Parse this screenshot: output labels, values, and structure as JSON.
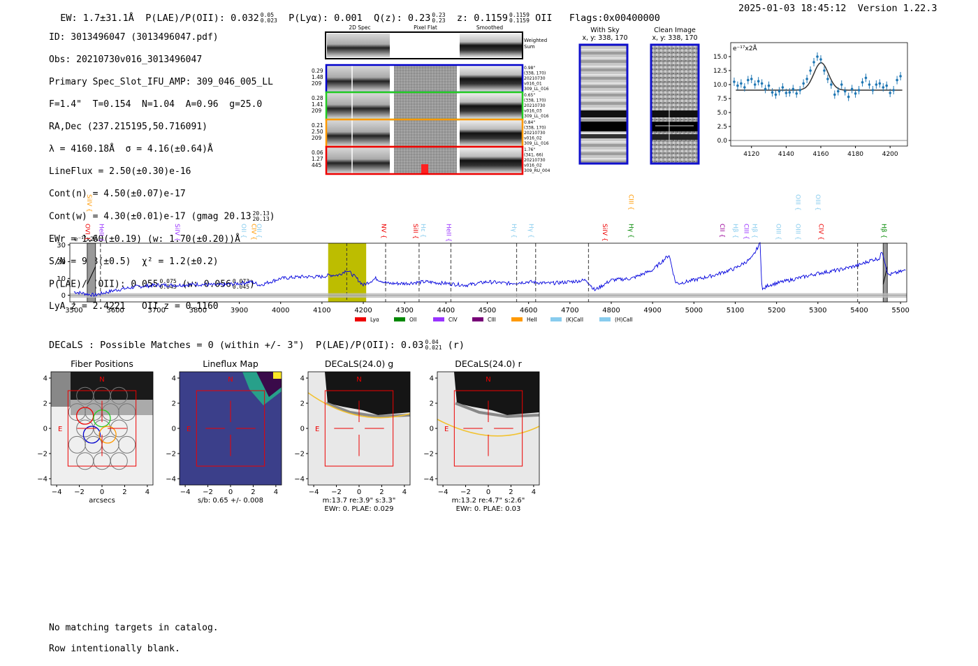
{
  "header": {
    "ew": "EW: 1.7±31.1Å",
    "plae_label": "P(LAE)/P(OII): 0.032",
    "plae_hi": "0.05",
    "plae_lo": "0.023",
    "plya": "P(Lyα): 0.001",
    "qz_label": "Q(z): 0.23",
    "qz_hi": "0.23",
    "qz_lo": "0.23",
    "z_label": "z: 0.1159",
    "z_hi": "0.1159",
    "z_lo": "0.1159",
    "z_line": "OII",
    "flags": "Flags:0x00400000",
    "datetime": "2025-01-03 18:45:12",
    "version": "Version 1.22.3"
  },
  "info": {
    "id": "ID: 3013496047 (3013496047.pdf)",
    "obs": "Obs: 20210730v016_3013496047",
    "primary": "Primary Spec_Slot_IFU_AMP: 309_046_005_LL",
    "params": "F=1.4\"  T=0.154  N=1.04  A=0.96  g=25.0",
    "radec": "RA,Dec (237.215195,50.716091)",
    "lambda": "λ = 4160.18Å  σ = 4.16(±0.64)Å",
    "lineflux": "LineFlux = 2.50(±0.30)e-16",
    "contn": "Cont(n) = 4.50(±0.07)e-17",
    "contw": "Cont(w) = 4.30(±0.01)e-17 (gmag 20.13",
    "contw_hi": "20.13",
    "contw_lo": "20.13",
    "ewr": "EWr = 1.60(±0.19) (w: 1.70(±0.20))Å",
    "sn": "S/N = 9.3(±0.5)  χ² = 1.2(±0.2)",
    "plae": "P(LAE)/P(OII): 0.055",
    "plae_hi": "0.075",
    "plae_lo": "0.043",
    "plae_w": "(w: 0.056",
    "plae_w_hi": "0.073",
    "plae_w_lo": "0.045",
    "lya": "LyA z = 2.4221   OII z = 0.1160"
  },
  "cutouts": {
    "col1": "2D Spec",
    "col2": "Pixel Flat",
    "col3": "Smoothed",
    "weighted": "Weighted",
    "sum": "Sum",
    "rows": [
      {
        "a": "0.29",
        "b": "1.48",
        "c": "209",
        "d1": "0.98\"",
        "d2": "(338, 170)",
        "d3": "20210730",
        "d4": "v016_01",
        "d5": "309_LL_016",
        "color": "#0000cc"
      },
      {
        "a": "0.28",
        "b": "1.41",
        "c": "209",
        "d1": "0.65\"",
        "d2": "(338, 170)",
        "d3": "20210730",
        "d4": "v016_03",
        "d5": "309_LL_016",
        "color": "#22cc22"
      },
      {
        "a": "0.21",
        "b": "2.50",
        "c": "209",
        "d1": "0.84\"",
        "d2": "(338, 170)",
        "d3": "20210730",
        "d4": "v016_02",
        "d5": "309_LL_016",
        "color": "#ff9900"
      },
      {
        "a": "0.06",
        "b": "1.27",
        "c": "445",
        "d1": "1.76\"",
        "d2": "(341, 66)",
        "d3": "20210730",
        "d4": "v016_02",
        "d5": "309_RU_004",
        "color": "#ee0000"
      }
    ]
  },
  "sky": {
    "withsky": "With Sky",
    "withsky_xy": "x, y: 338, 170",
    "clean": "Clean Image",
    "clean_xy": "x, y: 338, 170"
  },
  "chart_data": [
    {
      "type": "scatter",
      "title": "",
      "ylabel": "e⁻¹⁷x2Å",
      "xlim": [
        4108,
        4210
      ],
      "ylim": [
        -1,
        17.5
      ],
      "xticks": [
        "4120",
        "4140",
        "4160",
        "4180",
        "4200"
      ],
      "yticks": [
        "0.0",
        "2.5",
        "5.0",
        "7.5",
        "10.0",
        "12.5",
        "15.0"
      ],
      "x": [
        4110,
        4112,
        4114,
        4116,
        4118,
        4120,
        4122,
        4124,
        4126,
        4128,
        4130,
        4132,
        4134,
        4136,
        4138,
        4140,
        4142,
        4144,
        4146,
        4148,
        4150,
        4152,
        4154,
        4156,
        4158,
        4160,
        4162,
        4164,
        4166,
        4168,
        4170,
        4172,
        4174,
        4176,
        4178,
        4180,
        4182,
        4184,
        4186,
        4188,
        4190,
        4192,
        4194,
        4196,
        4198,
        4200,
        4202,
        4204,
        4206
      ],
      "y": [
        10.5,
        9.8,
        10.2,
        9.5,
        10.8,
        11.0,
        10.0,
        10.6,
        10.2,
        9.2,
        9.8,
        8.6,
        8.2,
        8.8,
        9.5,
        8.5,
        8.6,
        9.2,
        8.4,
        9.0,
        10.2,
        11.0,
        12.5,
        14.0,
        15.0,
        14.5,
        12.5,
        11.0,
        10.0,
        8.2,
        8.8,
        10.0,
        8.8,
        7.8,
        9.2,
        8.4,
        9.0,
        10.4,
        11.2,
        10.0,
        9.0,
        10.0,
        10.2,
        9.5,
        9.8,
        8.5,
        9.0,
        10.8,
        11.5
      ],
      "model_baseline": 9.0,
      "model_peak": 13.9,
      "model_center": 4160.18,
      "model_sigma": 4.16
    },
    {
      "type": "line",
      "ylabel": "e⁻¹⁷x2Å",
      "xlim": [
        3490,
        5515
      ],
      "ylim": [
        -4,
        31
      ],
      "xticks": [
        "3500",
        "3600",
        "3700",
        "3800",
        "3900",
        "4000",
        "4100",
        "4200",
        "4300",
        "4400",
        "4500",
        "4600",
        "4700",
        "4800",
        "4900",
        "5000",
        "5100",
        "5200",
        "5300",
        "5400",
        "5500"
      ],
      "yticks": [
        "0",
        "10",
        "20",
        "30"
      ],
      "highlight_range": [
        4115,
        4207
      ],
      "emission_center": 4160,
      "masked_ranges": [
        [
          3532,
          3552
        ],
        [
          5458,
          5468
        ]
      ],
      "dashed_lines": [
        3564,
        4254,
        4335,
        4412,
        4571,
        4617,
        4745,
        5396
      ],
      "series": {
        "x": [
          3500,
          3550,
          3600,
          3650,
          3700,
          3750,
          3800,
          3850,
          3900,
          3930,
          3950,
          4000,
          4050,
          4100,
          4120,
          4140,
          4160,
          4180,
          4200,
          4230,
          4260,
          4300,
          4350,
          4400,
          4450,
          4500,
          4550,
          4600,
          4650,
          4700,
          4740,
          4760,
          4800,
          4850,
          4900,
          4940,
          4955,
          4962,
          5000,
          5050,
          5100,
          5140,
          5160,
          5165,
          5180,
          5250,
          5300,
          5350,
          5400,
          5430,
          5450,
          5455,
          5470,
          5500,
          5515
        ],
        "y": [
          2,
          0,
          3,
          5,
          6,
          6,
          6.5,
          6,
          7,
          8,
          6,
          10,
          11,
          11,
          12,
          12,
          15,
          11,
          6,
          10,
          7,
          7,
          8,
          7,
          6,
          8,
          7,
          8,
          7,
          8,
          9,
          3,
          9,
          10,
          15,
          24,
          8,
          7,
          9,
          12,
          16,
          22,
          31,
          3,
          6,
          10,
          13,
          15,
          18,
          21,
          22,
          27,
          12,
          14,
          15
        ]
      },
      "line_labels": [
        {
          "text": "SiIV",
          "wave": 3532,
          "row": "high",
          "color": "#ff9900"
        },
        {
          "text": "OVI",
          "wave": 3528,
          "row": "low",
          "color": "#ee0000"
        },
        {
          "text": "HeII",
          "wave": 3562,
          "row": "low",
          "color": "#9933ff"
        },
        {
          "text": "SiIV",
          "wave": 3745,
          "row": "low",
          "color": "#9933ff"
        },
        {
          "text": "OII",
          "wave": 3906,
          "row": "low",
          "color": "#88ccee"
        },
        {
          "text": "CIV",
          "wave": 3930,
          "row": "low",
          "color": "#ff9900"
        },
        {
          "text": "OII",
          "wave": 3943,
          "row": "low",
          "color": "#88ccee"
        },
        {
          "text": "NV",
          "wave": 4245,
          "row": "low",
          "color": "#ee0000"
        },
        {
          "text": "SiII",
          "wave": 4322,
          "row": "low",
          "color": "#ee0000"
        },
        {
          "text": "Hε",
          "wave": 4340,
          "row": "low",
          "color": "#88ccee"
        },
        {
          "text": "HeII",
          "wave": 4402,
          "row": "low",
          "color": "#9933ff"
        },
        {
          "text": "Hγ",
          "wave": 4560,
          "row": "low",
          "color": "#88ccee"
        },
        {
          "text": "Hγ",
          "wave": 4601,
          "row": "low",
          "color": "#88ccee"
        },
        {
          "text": "SiIV",
          "wave": 4780,
          "row": "low",
          "color": "#ee0000"
        },
        {
          "text": "CIII",
          "wave": 4843,
          "row": "high",
          "color": "#ff9900"
        },
        {
          "text": "Hγ",
          "wave": 4843,
          "row": "low",
          "color": "#008800"
        },
        {
          "text": "CII",
          "wave": 5064,
          "row": "low",
          "color": "#990099"
        },
        {
          "text": "Hβ",
          "wave": 5096,
          "row": "low",
          "color": "#88ccee"
        },
        {
          "text": "CIII",
          "wave": 5122,
          "row": "low",
          "color": "#9933ff"
        },
        {
          "text": "Hβ",
          "wave": 5142,
          "row": "low",
          "color": "#88ccee"
        },
        {
          "text": "OIII",
          "wave": 5200,
          "row": "low",
          "color": "#88ccee"
        },
        {
          "text": "OIII",
          "wave": 5247,
          "row": "high",
          "color": "#88ccee"
        },
        {
          "text": "OIII",
          "wave": 5247,
          "row": "low",
          "color": "#88ccee"
        },
        {
          "text": "OIII",
          "wave": 5295,
          "row": "high",
          "color": "#88ccee"
        },
        {
          "text": "CIV",
          "wave": 5303,
          "row": "low",
          "color": "#ee0000"
        },
        {
          "text": "Hβ",
          "wave": 5455,
          "row": "low",
          "color": "#008800"
        }
      ],
      "legend": [
        {
          "label": "Lyα",
          "color": "#ee0000"
        },
        {
          "label": "OII",
          "color": "#008800"
        },
        {
          "label": "CIV",
          "color": "#9933ff"
        },
        {
          "label": "CIII",
          "color": "#770077"
        },
        {
          "label": "HeII",
          "color": "#ff9900"
        },
        {
          "label": "(K)CaII",
          "color": "#88ccee"
        },
        {
          "label": "(H)CaII",
          "color": "#88ccee"
        }
      ]
    }
  ],
  "decals": {
    "title_line": "DECaLS : Possible Matches = 0 (within +/- 3\")  P(LAE)/P(OII): 0.03",
    "title_hi": "0.04",
    "title_lo": "0.021",
    "title_band": "(r)",
    "panels": [
      {
        "title": "Fiber Positions",
        "sub1": "arcsecs",
        "sub2": ""
      },
      {
        "title": "Lineflux Map",
        "sub1": "s/b: 0.65 +/- 0.008",
        "sub2": ""
      },
      {
        "title": "DECaLS(24.0) g",
        "sub1": "m:13.7  re:3.9\"  s:3.3\"",
        "sub2": "EWr: 0. PLAE: 0.029"
      },
      {
        "title": "DECaLS(24.0) r",
        "sub1": "m:13.2  re:4.7\"  s:2.6\"",
        "sub2": "EWr: 0. PLAE: 0.03"
      }
    ],
    "ticks": [
      "−4",
      "−2",
      "0",
      "2",
      "4"
    ],
    "yticks": [
      "4",
      "2",
      "0",
      "−2",
      "−4"
    ],
    "north": "N",
    "east": "E"
  },
  "footer": {
    "line1": "No matching targets in catalog.",
    "line2": "Row intentionally blank."
  }
}
